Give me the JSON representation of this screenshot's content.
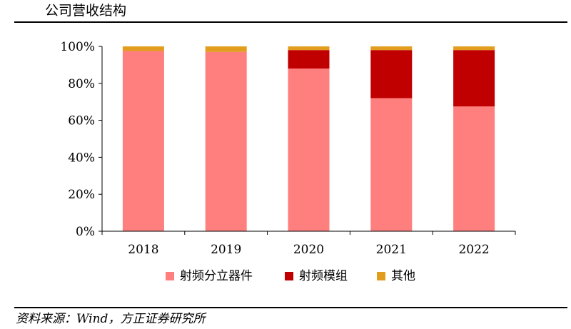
{
  "page": {
    "title": "公司营收结构",
    "source": "资料来源：Wind，方正证券研究所"
  },
  "chart_data": {
    "type": "bar",
    "stacked": true,
    "categories": [
      "2018",
      "2019",
      "2020",
      "2021",
      "2022"
    ],
    "series": [
      {
        "name": "射频分立器件",
        "color": "#ff7f7f",
        "values": [
          97.5,
          97,
          88,
          72,
          67.5
        ]
      },
      {
        "name": "射频模组",
        "color": "#c00000",
        "values": [
          0,
          0,
          10,
          26,
          30.5
        ]
      },
      {
        "name": "其他",
        "color": "#e39d1e",
        "values": [
          2.5,
          3,
          2,
          2,
          2
        ]
      }
    ],
    "ylim": [
      0,
      100
    ],
    "yticks": [
      "0%",
      "20%",
      "40%",
      "60%",
      "80%",
      "100%"
    ],
    "legend_position": "bottom",
    "grid": false
  }
}
